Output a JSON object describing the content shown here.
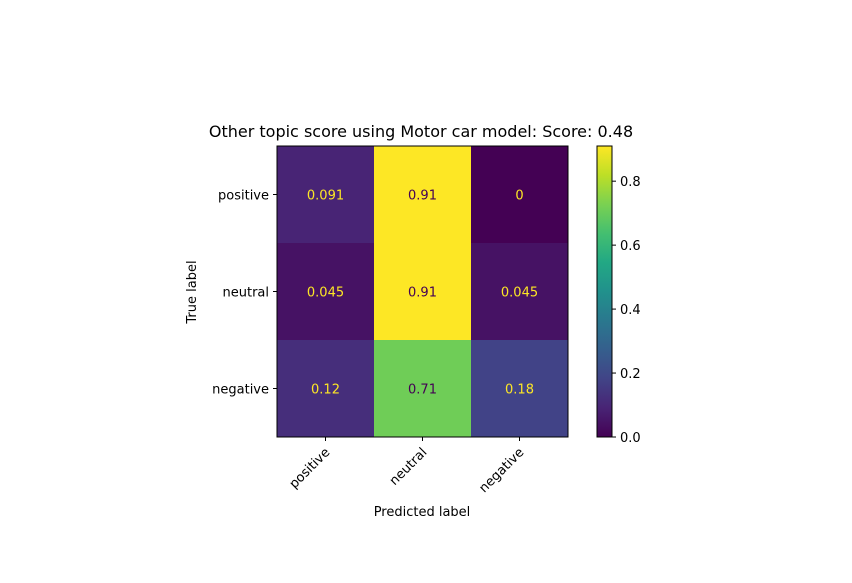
{
  "chart_data": {
    "type": "heatmap",
    "title": "Other topic score using Motor car model: Score: 0.48",
    "xlabel": "Predicted label",
    "ylabel": "True label",
    "x_categories": [
      "positive",
      "neutral",
      "negative"
    ],
    "y_categories": [
      "positive",
      "neutral",
      "negative"
    ],
    "values": [
      [
        0.091,
        0.91,
        0
      ],
      [
        0.045,
        0.91,
        0.045
      ],
      [
        0.12,
        0.71,
        0.18
      ]
    ],
    "value_labels": [
      [
        "0.091",
        "0.91",
        "0"
      ],
      [
        "0.045",
        "0.91",
        "0.045"
      ],
      [
        "0.12",
        "0.71",
        "0.18"
      ]
    ],
    "colorbar": {
      "min": 0,
      "max": 0.91,
      "ticks": [
        0.0,
        0.2,
        0.4,
        0.6,
        0.8
      ],
      "tick_labels": [
        "0.0",
        "0.2",
        "0.4",
        "0.6",
        "0.8"
      ]
    },
    "colormap": "viridis",
    "annotation_colors": {
      "light": "#fde725",
      "dark": "#440154"
    }
  }
}
